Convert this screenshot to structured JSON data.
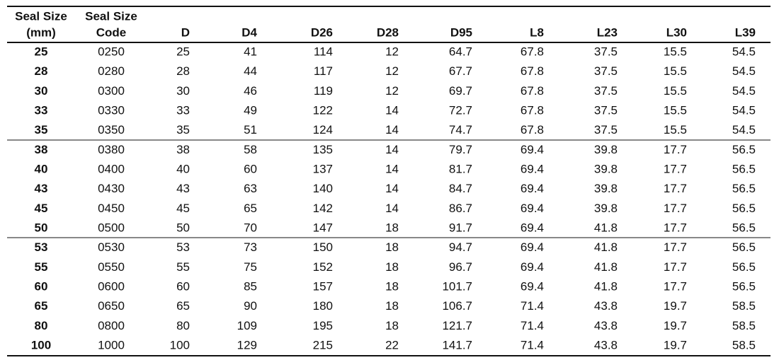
{
  "table": {
    "header": [
      [
        "Seal Size",
        "(mm)"
      ],
      [
        "Seal Size",
        "Code"
      ],
      [
        "D"
      ],
      [
        "D4"
      ],
      [
        "D26"
      ],
      [
        "D28"
      ],
      [
        "D95"
      ],
      [
        "L8"
      ],
      [
        "L23"
      ],
      [
        "L30"
      ],
      [
        "L39"
      ]
    ],
    "rows": [
      [
        "25",
        "0250",
        "25",
        "41",
        "114",
        "12",
        "64.7",
        "67.8",
        "37.5",
        "15.5",
        "54.5"
      ],
      [
        "28",
        "0280",
        "28",
        "44",
        "117",
        "12",
        "67.7",
        "67.8",
        "37.5",
        "15.5",
        "54.5"
      ],
      [
        "30",
        "0300",
        "30",
        "46",
        "119",
        "12",
        "69.7",
        "67.8",
        "37.5",
        "15.5",
        "54.5"
      ],
      [
        "33",
        "0330",
        "33",
        "49",
        "122",
        "14",
        "72.7",
        "67.8",
        "37.5",
        "15.5",
        "54.5"
      ],
      [
        "35",
        "0350",
        "35",
        "51",
        "124",
        "14",
        "74.7",
        "67.8",
        "37.5",
        "15.5",
        "54.5"
      ],
      [
        "38",
        "0380",
        "38",
        "58",
        "135",
        "14",
        "79.7",
        "69.4",
        "39.8",
        "17.7",
        "56.5"
      ],
      [
        "40",
        "0400",
        "40",
        "60",
        "137",
        "14",
        "81.7",
        "69.4",
        "39.8",
        "17.7",
        "56.5"
      ],
      [
        "43",
        "0430",
        "43",
        "63",
        "140",
        "14",
        "84.7",
        "69.4",
        "39.8",
        "17.7",
        "56.5"
      ],
      [
        "45",
        "0450",
        "45",
        "65",
        "142",
        "14",
        "86.7",
        "69.4",
        "39.8",
        "17.7",
        "56.5"
      ],
      [
        "50",
        "0500",
        "50",
        "70",
        "147",
        "18",
        "91.7",
        "69.4",
        "41.8",
        "17.7",
        "56.5"
      ],
      [
        "53",
        "0530",
        "53",
        "73",
        "150",
        "18",
        "94.7",
        "69.4",
        "41.8",
        "17.7",
        "56.5"
      ],
      [
        "55",
        "0550",
        "55",
        "75",
        "152",
        "18",
        "96.7",
        "69.4",
        "41.8",
        "17.7",
        "56.5"
      ],
      [
        "60",
        "0600",
        "60",
        "85",
        "157",
        "18",
        "101.7",
        "69.4",
        "41.8",
        "17.7",
        "56.5"
      ],
      [
        "65",
        "0650",
        "65",
        "90",
        "180",
        "18",
        "106.7",
        "71.4",
        "43.8",
        "19.7",
        "58.5"
      ],
      [
        "80",
        "0800",
        "80",
        "109",
        "195",
        "18",
        "121.7",
        "71.4",
        "43.8",
        "19.7",
        "58.5"
      ],
      [
        "100",
        "1000",
        "100",
        "129",
        "215",
        "22",
        "141.7",
        "71.4",
        "43.8",
        "19.7",
        "58.5"
      ]
    ]
  }
}
